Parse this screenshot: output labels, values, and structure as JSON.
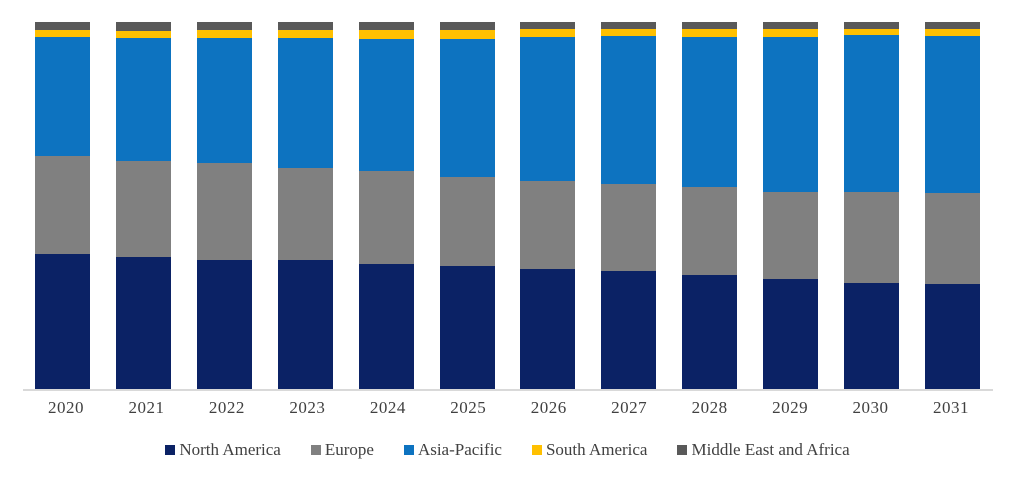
{
  "chart_data": {
    "type": "bar",
    "stacked": true,
    "stacking": "percent",
    "title": "",
    "xlabel": "",
    "ylabel": "",
    "ylim": [
      0,
      100
    ],
    "grid": false,
    "legend_position": "bottom",
    "axis_line_color": "#d9d9d9",
    "text_color": "#404040",
    "background_color": "#ffffff",
    "categories": [
      "2020",
      "2021",
      "2022",
      "2023",
      "2024",
      "2025",
      "2026",
      "2027",
      "2028",
      "2029",
      "2030",
      "2031"
    ],
    "series": [
      {
        "name": "North America",
        "color": "#0b2265",
        "values": [
          37.0,
          36.2,
          35.4,
          35.2,
          34.3,
          33.8,
          32.8,
          32.4,
          31.3,
          30.2,
          29.0,
          28.8
        ]
      },
      {
        "name": "Europe",
        "color": "#808080",
        "values": [
          26.7,
          26.0,
          26.2,
          25.2,
          25.2,
          24.1,
          24.0,
          23.7,
          23.9,
          23.5,
          24.7,
          24.8
        ]
      },
      {
        "name": "Asia-Pacific",
        "color": "#0d73c0",
        "values": [
          32.1,
          33.5,
          34.1,
          35.2,
          36.0,
          37.6,
          39.2,
          40.0,
          40.8,
          42.3,
          42.9,
          42.5
        ]
      },
      {
        "name": "South America",
        "color": "#ffc000",
        "values": [
          1.9,
          2.0,
          2.0,
          2.2,
          2.4,
          2.4,
          2.2,
          2.1,
          2.2,
          2.2,
          1.6,
          2.0
        ]
      },
      {
        "name": "Middle East and Africa",
        "color": "#595959",
        "values": [
          2.3,
          2.3,
          2.3,
          2.2,
          2.1,
          2.1,
          1.8,
          1.8,
          1.8,
          1.8,
          1.8,
          1.9
        ]
      }
    ]
  }
}
